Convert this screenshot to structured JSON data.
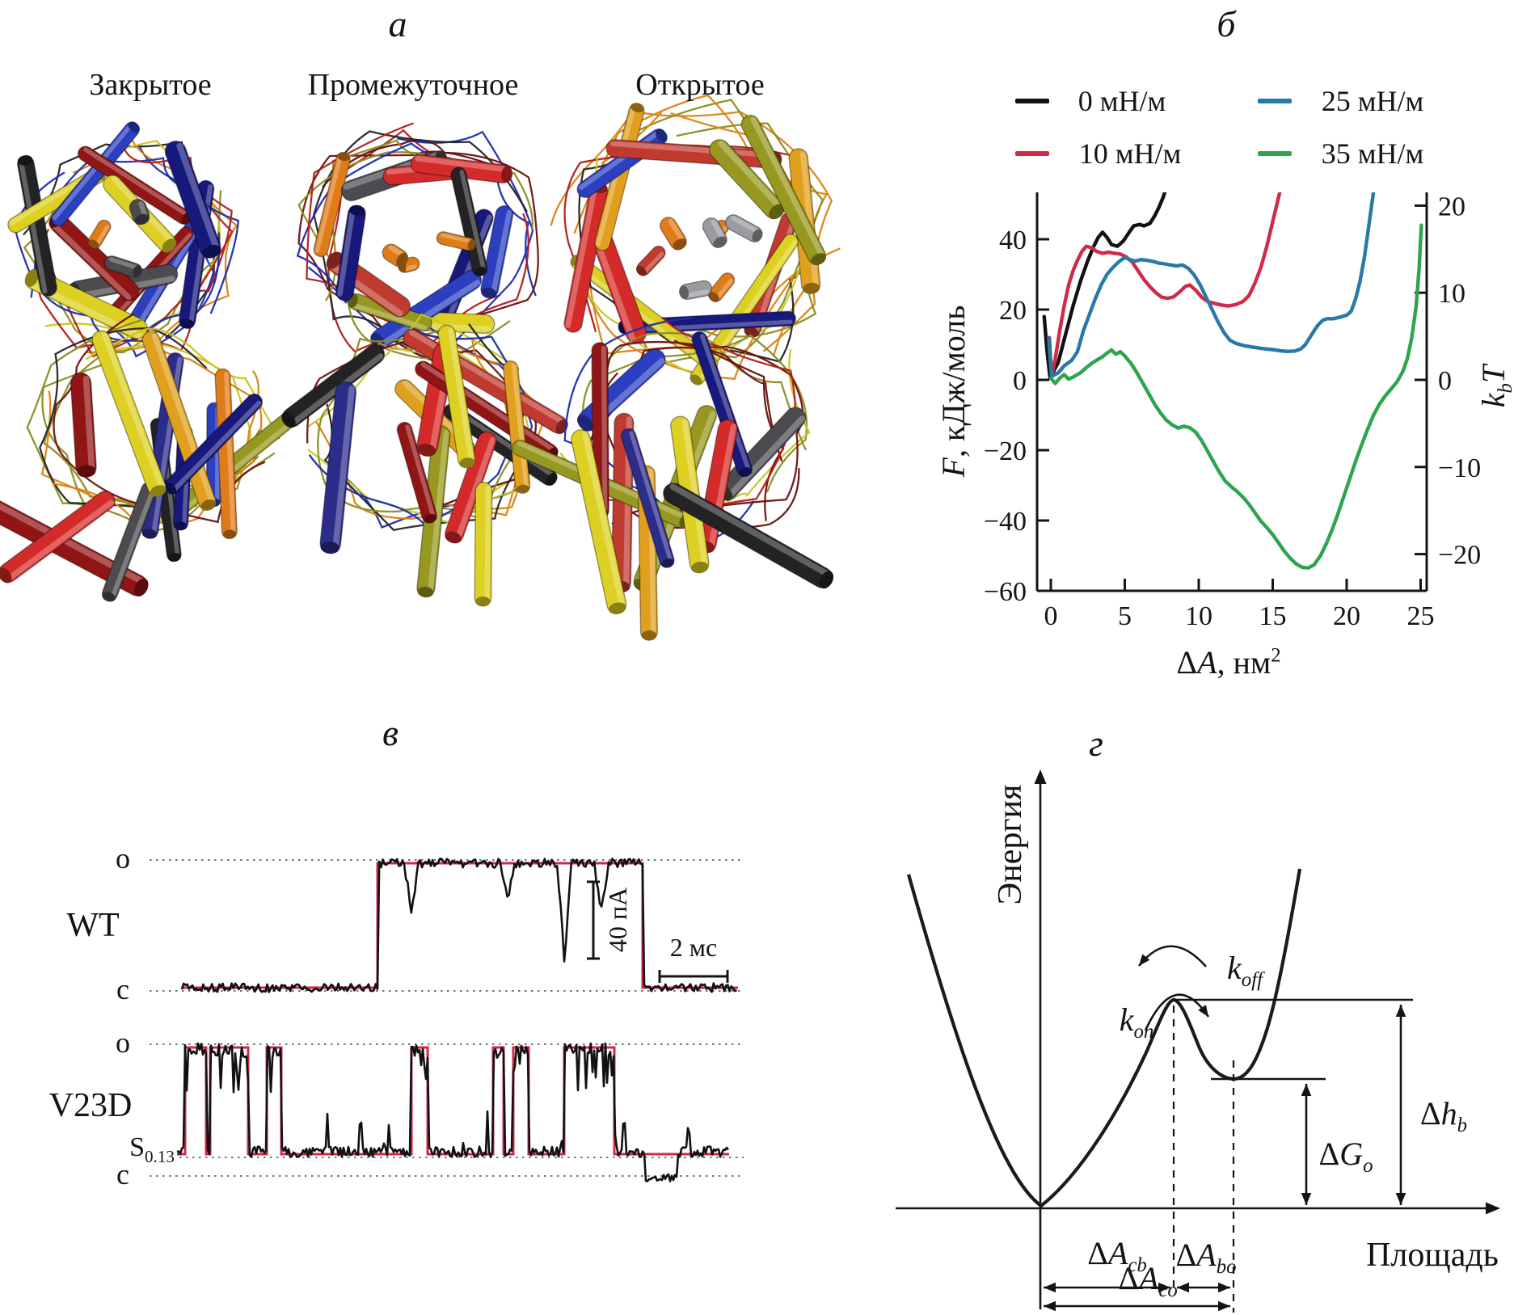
{
  "figure": {
    "panel_labels": {
      "a": "а",
      "b": "б",
      "v": "в",
      "g": "г"
    },
    "panel_a": {
      "columns": [
        "Закрытое",
        "Промежуточное",
        "Открытое"
      ],
      "views": [
        "top",
        "side"
      ]
    },
    "panel_b": {
      "legend": [
        {
          "label": "0 мН/м",
          "color": "#111111"
        },
        {
          "label": "10 мН/м",
          "color": "#cf2a47"
        },
        {
          "label": "25 мН/м",
          "color": "#2878a8"
        },
        {
          "label": "35 мН/м",
          "color": "#2da44d"
        }
      ]
    },
    "panel_v": {
      "traces": [
        {
          "name": "WT",
          "open_label": "o",
          "closed_label": "c"
        },
        {
          "name": "V23D",
          "open_label": "o",
          "closed_label": "c"
        }
      ],
      "scale_bar_vertical": "40 пА",
      "scale_bar_horizontal": "2 мс",
      "fit_color": "#cf2a47",
      "trace_color": "#111111"
    },
    "panel_g": {
      "ylabel": "Энергия",
      "xlabel": "Площадь"
    },
    "math_labels": {
      "ylabel_left": {
        "it": "F",
        "post": ", кДж/моль"
      },
      "ylabel_right": {
        "it": "k",
        "sub": "b",
        "it2": "T"
      },
      "xlabel": {
        "pre": "Δ",
        "it": "A",
        "post": ", нм",
        "sup": "2"
      },
      "k_on": {
        "it": "k",
        "sub": "on"
      },
      "k_off": {
        "it": "k",
        "sub": "off"
      },
      "dG_o": {
        "pre": "Δ",
        "it": "G",
        "sub": "o"
      },
      "dh_b": {
        "pre": "Δ",
        "it": "h",
        "sub": "b"
      },
      "dA_cb": {
        "pre": "Δ",
        "it": "A",
        "sub": "cb"
      },
      "dA_bo": {
        "pre": "Δ",
        "it": "A",
        "sub": "bo"
      },
      "dA_co": {
        "pre": "Δ",
        "it": "A",
        "sub": "co"
      },
      "s_sub": {
        "pre": "S",
        "sub": "0.13",
        "subUpright": true
      }
    }
  },
  "chart_data": {
    "type": "line",
    "title": "",
    "xlabel": "ΔA, нм²",
    "ylabel_left": "F, кДж/моль",
    "ylabel_right": "kbT",
    "xlim": [
      -0.9,
      25.3
    ],
    "ylim_left": [
      -60,
      53.3
    ],
    "x_ticks": [
      0,
      5,
      10,
      15,
      20,
      25
    ],
    "y_ticks_left": [
      40,
      20,
      0,
      -20,
      -40,
      -60
    ],
    "y_ticks_right": [
      20,
      10,
      0,
      -10,
      -20
    ],
    "kbt_to_kj": 2.478,
    "grid": false,
    "legend_position": "top",
    "series": [
      {
        "name": "0 мН/м",
        "color": "#111111",
        "points": [
          [
            -0.45,
            18
          ],
          [
            -0.25,
            8
          ],
          [
            -0.05,
            0.5
          ],
          [
            0.5,
            5
          ],
          [
            1,
            13
          ],
          [
            1.5,
            21
          ],
          [
            2,
            28
          ],
          [
            2.5,
            34
          ],
          [
            2.9,
            38
          ],
          [
            3.2,
            40.5
          ],
          [
            3.5,
            42
          ],
          [
            3.8,
            40.5
          ],
          [
            4.1,
            38.5
          ],
          [
            4.5,
            38
          ],
          [
            4.9,
            39.5
          ],
          [
            5.3,
            42
          ],
          [
            5.6,
            43.8
          ],
          [
            6,
            44.2
          ],
          [
            6.3,
            43.8
          ],
          [
            6.7,
            44.5
          ],
          [
            7,
            46.5
          ],
          [
            7.3,
            49
          ],
          [
            7.6,
            52
          ],
          [
            7.9,
            56
          ]
        ]
      },
      {
        "name": "10 мН/м",
        "color": "#cf2a47",
        "points": [
          [
            -0.1,
            12
          ],
          [
            0.05,
            1
          ],
          [
            0.3,
            6
          ],
          [
            0.6,
            14
          ],
          [
            0.9,
            21
          ],
          [
            1.2,
            27
          ],
          [
            1.5,
            31
          ],
          [
            1.8,
            34
          ],
          [
            2.1,
            36.5
          ],
          [
            2.4,
            38
          ],
          [
            2.8,
            37.5
          ],
          [
            3.1,
            36.5
          ],
          [
            3.5,
            36
          ],
          [
            3.9,
            36.3
          ],
          [
            4.3,
            36
          ],
          [
            4.7,
            35.8
          ],
          [
            5.1,
            35
          ],
          [
            5.5,
            33.5
          ],
          [
            5.9,
            31
          ],
          [
            6.3,
            28.5
          ],
          [
            6.7,
            26.5
          ],
          [
            7.1,
            24.8
          ],
          [
            7.5,
            23.5
          ],
          [
            7.9,
            23.2
          ],
          [
            8.3,
            23.6
          ],
          [
            8.7,
            25
          ],
          [
            9.1,
            26.6
          ],
          [
            9.4,
            27
          ],
          [
            9.8,
            25.5
          ],
          [
            10.2,
            23.5
          ],
          [
            10.6,
            22.3
          ],
          [
            11,
            21.8
          ],
          [
            11.5,
            21.3
          ],
          [
            12,
            21
          ],
          [
            12.5,
            21.4
          ],
          [
            13,
            22.3
          ],
          [
            13.4,
            24
          ],
          [
            13.8,
            27.5
          ],
          [
            14.2,
            32
          ],
          [
            14.6,
            38
          ],
          [
            15,
            45
          ],
          [
            15.4,
            52
          ],
          [
            15.7,
            57
          ]
        ]
      },
      {
        "name": "25 мН/м",
        "color": "#2878a8",
        "points": [
          [
            -0.15,
            12
          ],
          [
            0.05,
            1
          ],
          [
            0.5,
            2
          ],
          [
            0.9,
            4
          ],
          [
            1.4,
            5.5
          ],
          [
            1.8,
            8
          ],
          [
            2.2,
            14
          ],
          [
            2.6,
            18.5
          ],
          [
            3,
            23
          ],
          [
            3.4,
            27
          ],
          [
            3.8,
            30
          ],
          [
            4.2,
            32
          ],
          [
            4.6,
            33.6
          ],
          [
            5,
            34.8
          ],
          [
            5.3,
            34.3
          ],
          [
            5.7,
            33.8
          ],
          [
            6.1,
            34.2
          ],
          [
            6.5,
            34
          ],
          [
            6.9,
            33.7
          ],
          [
            7.3,
            33.2
          ],
          [
            7.7,
            33
          ],
          [
            8.1,
            32.7
          ],
          [
            8.5,
            32.4
          ],
          [
            8.9,
            32.7
          ],
          [
            9.3,
            31.7
          ],
          [
            9.7,
            29.8
          ],
          [
            10.1,
            27
          ],
          [
            10.5,
            23.5
          ],
          [
            10.9,
            20
          ],
          [
            11.3,
            16.5
          ],
          [
            11.7,
            13.5
          ],
          [
            12.1,
            11.3
          ],
          [
            12.5,
            10.4
          ],
          [
            13,
            9.8
          ],
          [
            13.5,
            9.4
          ],
          [
            14,
            9.1
          ],
          [
            14.5,
            8.8
          ],
          [
            15,
            8.6
          ],
          [
            15.5,
            8.3
          ],
          [
            16,
            8.1
          ],
          [
            16.5,
            8.2
          ],
          [
            16.9,
            8.8
          ],
          [
            17.2,
            10
          ],
          [
            17.5,
            12
          ],
          [
            17.8,
            14
          ],
          [
            18.1,
            15.8
          ],
          [
            18.4,
            17
          ],
          [
            18.7,
            17.4
          ],
          [
            19.1,
            17.4
          ],
          [
            19.5,
            17.8
          ],
          [
            20,
            18.4
          ],
          [
            20.3,
            19.5
          ],
          [
            20.6,
            23
          ],
          [
            20.9,
            28
          ],
          [
            21.2,
            35
          ],
          [
            21.5,
            44
          ],
          [
            21.8,
            53
          ],
          [
            21.9,
            57
          ]
        ]
      },
      {
        "name": "35 мН/м",
        "color": "#2da44d",
        "points": [
          [
            0,
            0.5
          ],
          [
            0.3,
            -1
          ],
          [
            0.6,
            0.5
          ],
          [
            0.9,
            1.5
          ],
          [
            1.2,
            0.2
          ],
          [
            1.5,
            0.8
          ],
          [
            2,
            2
          ],
          [
            2.4,
            3.5
          ],
          [
            2.8,
            4.8
          ],
          [
            3.1,
            5.6
          ],
          [
            3.5,
            6.6
          ],
          [
            3.8,
            7.6
          ],
          [
            4.1,
            8.5
          ],
          [
            4.4,
            7.3
          ],
          [
            4.7,
            8
          ],
          [
            5,
            6.8
          ],
          [
            5.4,
            4.8
          ],
          [
            5.8,
            2.2
          ],
          [
            6.2,
            -0.8
          ],
          [
            6.6,
            -3.8
          ],
          [
            7,
            -6.8
          ],
          [
            7.4,
            -9.3
          ],
          [
            7.8,
            -11.4
          ],
          [
            8.2,
            -12.8
          ],
          [
            8.6,
            -13.7
          ],
          [
            9,
            -13.2
          ],
          [
            9.4,
            -13.6
          ],
          [
            9.8,
            -14.9
          ],
          [
            10.2,
            -17.3
          ],
          [
            10.6,
            -20.3
          ],
          [
            11,
            -23.3
          ],
          [
            11.4,
            -26.3
          ],
          [
            11.8,
            -28.8
          ],
          [
            12.2,
            -30.4
          ],
          [
            12.6,
            -31.8
          ],
          [
            13,
            -33.4
          ],
          [
            13.4,
            -35.4
          ],
          [
            13.8,
            -37.8
          ],
          [
            14.2,
            -40.2
          ],
          [
            14.6,
            -42
          ],
          [
            15,
            -44
          ],
          [
            15.4,
            -46.4
          ],
          [
            15.8,
            -48.8
          ],
          [
            16.2,
            -50.8
          ],
          [
            16.6,
            -52.4
          ],
          [
            17,
            -53.3
          ],
          [
            17.4,
            -53.5
          ],
          [
            17.8,
            -52.6
          ],
          [
            18.2,
            -50.2
          ],
          [
            18.6,
            -46.8
          ],
          [
            19,
            -42.8
          ],
          [
            19.4,
            -38.2
          ],
          [
            19.8,
            -33.2
          ],
          [
            20.2,
            -28.2
          ],
          [
            20.6,
            -23.2
          ],
          [
            21,
            -18.6
          ],
          [
            21.4,
            -14.2
          ],
          [
            21.8,
            -10.2
          ],
          [
            22.2,
            -7
          ],
          [
            22.6,
            -4.6
          ],
          [
            23,
            -2.6
          ],
          [
            23.4,
            -0.6
          ],
          [
            23.8,
            2.4
          ],
          [
            24.1,
            6
          ],
          [
            24.4,
            12
          ],
          [
            24.7,
            21
          ],
          [
            24.9,
            32
          ],
          [
            25.05,
            44
          ]
        ]
      }
    ]
  }
}
